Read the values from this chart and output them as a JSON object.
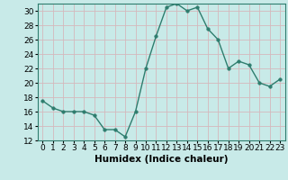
{
  "x": [
    0,
    1,
    2,
    3,
    4,
    5,
    6,
    7,
    8,
    9,
    10,
    11,
    12,
    13,
    14,
    15,
    16,
    17,
    18,
    19,
    20,
    21,
    22,
    23
  ],
  "y": [
    17.5,
    16.5,
    16.0,
    16.0,
    16.0,
    15.5,
    13.5,
    13.5,
    12.5,
    16.0,
    22.0,
    26.5,
    30.5,
    31.0,
    30.0,
    30.5,
    27.5,
    26.0,
    22.0,
    23.0,
    22.5,
    20.0,
    19.5,
    20.5
  ],
  "line_color": "#2e7d6e",
  "marker": "o",
  "marker_size": 2.5,
  "bg_color": "#c8eae8",
  "grid_color": "#d4b8bc",
  "xlabel": "Humidex (Indice chaleur)",
  "xlim": [
    -0.5,
    23.5
  ],
  "ylim": [
    12,
    31
  ],
  "yticks": [
    12,
    14,
    16,
    18,
    20,
    22,
    24,
    26,
    28,
    30
  ],
  "xticks": [
    0,
    1,
    2,
    3,
    4,
    5,
    6,
    7,
    8,
    9,
    10,
    11,
    12,
    13,
    14,
    15,
    16,
    17,
    18,
    19,
    20,
    21,
    22,
    23
  ],
  "tick_fontsize": 6.5,
  "label_fontsize": 7.5,
  "spine_color": "#2e7d6e"
}
